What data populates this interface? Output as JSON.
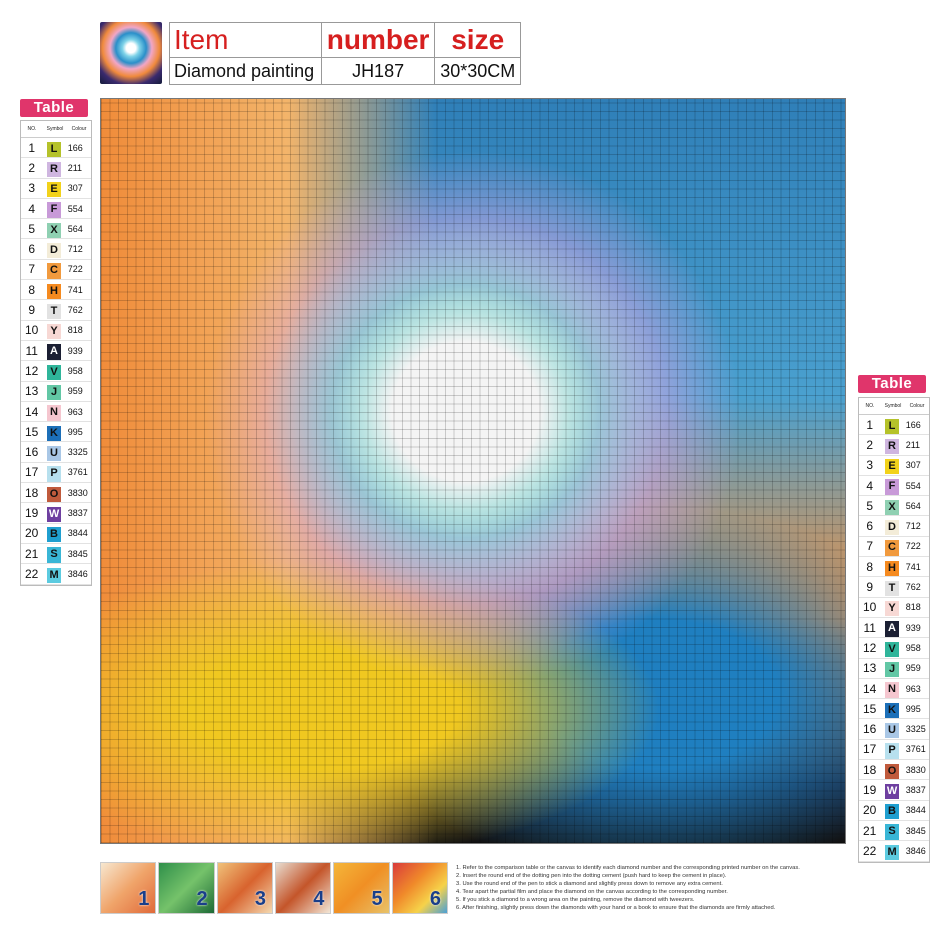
{
  "header": {
    "labels": {
      "item": "Item",
      "number": "number",
      "size": "size"
    },
    "values": {
      "item": "Diamond painting",
      "number": "JH187",
      "size": "30*30CM"
    }
  },
  "legend": {
    "title": "Table",
    "columns": {
      "no": "NO.",
      "symbol": "Symbol",
      "colour": "Colour"
    },
    "rows": [
      {
        "no": "1",
        "symbol": "L",
        "code": "166",
        "color": "#b5c22a",
        "text": "#111"
      },
      {
        "no": "2",
        "symbol": "R",
        "code": "211",
        "color": "#cfb6e0",
        "text": "#111"
      },
      {
        "no": "3",
        "symbol": "E",
        "code": "307",
        "color": "#f2d21b",
        "text": "#111"
      },
      {
        "no": "4",
        "symbol": "F",
        "code": "554",
        "color": "#c89ad8",
        "text": "#111"
      },
      {
        "no": "5",
        "symbol": "X",
        "code": "564",
        "color": "#8fd0b2",
        "text": "#111"
      },
      {
        "no": "6",
        "symbol": "D",
        "code": "712",
        "color": "#f3ecd8",
        "text": "#111"
      },
      {
        "no": "7",
        "symbol": "C",
        "code": "722",
        "color": "#f19a3e",
        "text": "#111"
      },
      {
        "no": "8",
        "symbol": "H",
        "code": "741",
        "color": "#f58a1f",
        "text": "#111"
      },
      {
        "no": "9",
        "symbol": "T",
        "code": "762",
        "color": "#e2e2e2",
        "text": "#111"
      },
      {
        "no": "10",
        "symbol": "Y",
        "code": "818",
        "color": "#f7d8d4",
        "text": "#111"
      },
      {
        "no": "11",
        "symbol": "A",
        "code": "939",
        "color": "#1b1f33",
        "text": "#ffffff"
      },
      {
        "no": "12",
        "symbol": "V",
        "code": "958",
        "color": "#2fb59a",
        "text": "#111"
      },
      {
        "no": "13",
        "symbol": "J",
        "code": "959",
        "color": "#62c7a5",
        "text": "#111"
      },
      {
        "no": "14",
        "symbol": "N",
        "code": "963",
        "color": "#f5c6cf",
        "text": "#111"
      },
      {
        "no": "15",
        "symbol": "K",
        "code": "995",
        "color": "#1c6fb8",
        "text": "#111"
      },
      {
        "no": "16",
        "symbol": "U",
        "code": "3325",
        "color": "#a9c7e6",
        "text": "#111"
      },
      {
        "no": "17",
        "symbol": "P",
        "code": "3761",
        "color": "#b7e0ee",
        "text": "#111"
      },
      {
        "no": "18",
        "symbol": "O",
        "code": "3830",
        "color": "#c05a3c",
        "text": "#111"
      },
      {
        "no": "19",
        "symbol": "W",
        "code": "3837",
        "color": "#6e3fa0",
        "text": "#ffffff"
      },
      {
        "no": "20",
        "symbol": "B",
        "code": "3844",
        "color": "#1f9fd0",
        "text": "#111"
      },
      {
        "no": "21",
        "symbol": "S",
        "code": "3845",
        "color": "#39b6d6",
        "text": "#111"
      },
      {
        "no": "22",
        "symbol": "M",
        "code": "3846",
        "color": "#5ccbe0",
        "text": "#111"
      }
    ]
  },
  "steps": [
    "1",
    "2",
    "3",
    "4",
    "5",
    "6"
  ],
  "instructions": [
    "1. Refer to the comparison table or the canvas to identify each diamond number and the corresponding printed number on the canvas.",
    "2. Insert the round end of the dotting pen into the dotting cement (push hard to keep the cement in place).",
    "3. Use the round end of the pen to stick a diamond and slightly press down to remove any extra cement.",
    "4. Tear apart the partial film and place the diamond on the canvas according to the corresponding number.",
    "5. If you stick a diamond to a wrong area on the painting, remove the diamond with tweezers.",
    "6. After finishing, slightly press down the diamonds with your hand or a book to ensure that the diamonds are firmly attached."
  ]
}
